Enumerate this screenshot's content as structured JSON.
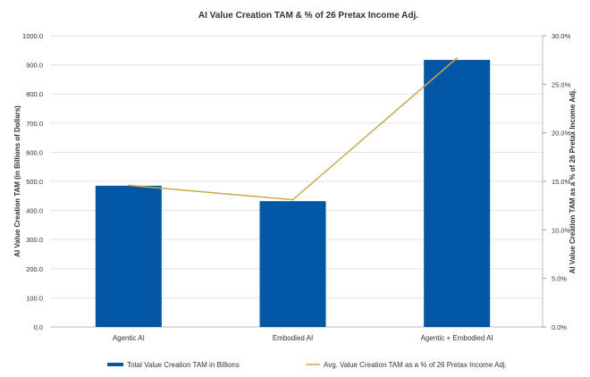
{
  "chart_data": {
    "type": "bar+line",
    "title": "AI Value Creation TAM & % of 26 Pretax Income Adj.",
    "categories": [
      "Agentic AI",
      "Embodied AI",
      "Agentic + Embodied AI"
    ],
    "ylabel": "AI Value Creation TAM (in Billions of Dollars)",
    "y2label": "AI Value Creation TAM as a % of 26 Pretax Income Adj.",
    "ylim": [
      0,
      1000
    ],
    "y2lim": [
      0,
      30
    ],
    "yticks": [
      "0.0",
      "100.0",
      "200.0",
      "300.0",
      "400.0",
      "500.0",
      "600.0",
      "700.0",
      "800.0",
      "900.0",
      "1000.0"
    ],
    "y2ticks": [
      "0.0%",
      "5.0%",
      "10.0%",
      "15.0%",
      "20.0%",
      "25.0%",
      "30.0%"
    ],
    "grid": true,
    "legend_position": "bottom",
    "series": [
      {
        "name": "Total Value Creation TAM in Billions",
        "type": "bar",
        "axis": "left",
        "color": "#0057a3",
        "values": [
          485,
          432,
          917
        ]
      },
      {
        "name": "Avg. Value Creation TAM as a % of 26 Pretax Income Adj.",
        "type": "line",
        "axis": "right",
        "color": "#c9a84a",
        "values": [
          14.6,
          13.1,
          27.7
        ]
      }
    ]
  }
}
